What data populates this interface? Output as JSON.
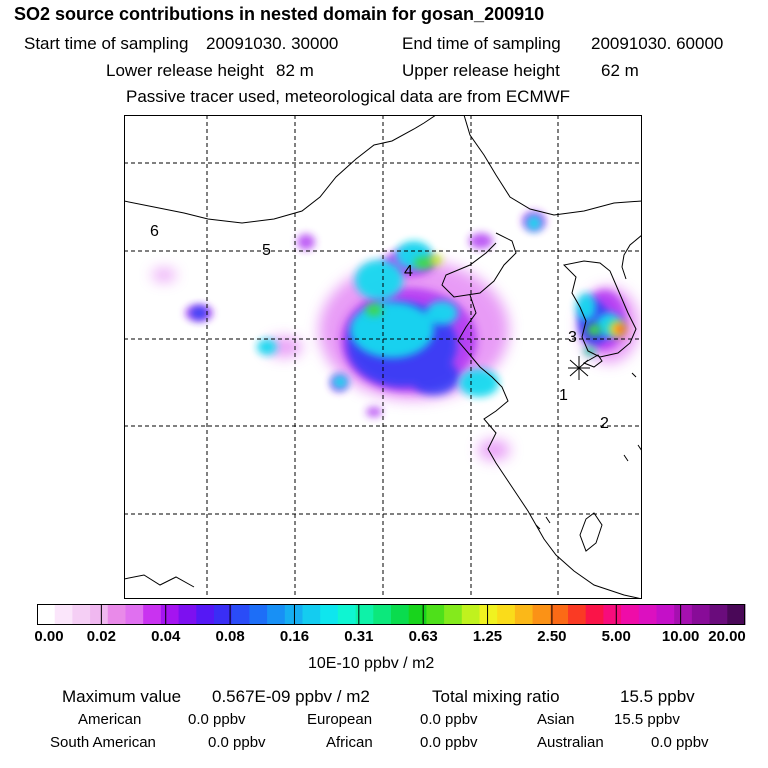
{
  "chart_data": {
    "type": "heatmap",
    "title": "SO2 source contributions in nested domain for gosan_200910",
    "header": {
      "start_label": "Start time of sampling",
      "start_value": "20091030. 30000",
      "end_label": "End time of sampling",
      "end_value": "20091030. 60000",
      "lower_label": "Lower release height",
      "lower_value": "82 m",
      "upper_label": "Upper release height",
      "upper_value": "62 m",
      "note": "Passive tracer used, meteorological data are from ECMWF"
    },
    "region_labels": [
      "1",
      "2",
      "3",
      "4",
      "5",
      "6"
    ],
    "colorbar": {
      "ticks": [
        "0.00",
        "0.02",
        "0.04",
        "0.08",
        "0.16",
        "0.31",
        "0.63",
        "1.25",
        "2.50",
        "5.00",
        "10.00",
        "20.00"
      ],
      "unit": "10E-10 ppbv / m2",
      "colors": [
        "#ffffff",
        "#fbe6fb",
        "#f5cff5",
        "#f0b8f0",
        "#e98ae9",
        "#e070f0",
        "#c933f0",
        "#a514f0",
        "#7d10f0",
        "#5518f5",
        "#3a2ef5",
        "#2a4cf7",
        "#1d6ef7",
        "#1890f5",
        "#16aef2",
        "#14ccf0",
        "#0ee6ee",
        "#0ff5d2",
        "#0ef2a8",
        "#0ce87c",
        "#0adc4e",
        "#18d41c",
        "#4ee01a",
        "#84ea1c",
        "#c0f21e",
        "#f0f220",
        "#fadc1a",
        "#fbb818",
        "#fb9216",
        "#fb6a16",
        "#fa3a24",
        "#fa1448",
        "#f70c7c",
        "#ef0ca8",
        "#dc10c0",
        "#c410c8",
        "#a510b0",
        "#880c98",
        "#6a0c7c",
        "#4a0858"
      ]
    },
    "summary": {
      "max_label": "Maximum value",
      "max_value": "0.567E-09 ppbv / m2",
      "total_label": "Total mixing ratio",
      "total_value": "15.5 ppbv",
      "american_label": "American",
      "american_value": "0.0 ppbv",
      "european_label": "European",
      "european_value": "0.0 ppbv",
      "asian_label": "Asian",
      "asian_value": "15.5 ppbv",
      "south_american_label": "South American",
      "south_american_value": "0.0 ppbv",
      "african_label": "African",
      "african_value": "0.0 ppbv",
      "australian_label": "Australian",
      "australian_value": "0.0 ppbv"
    }
  }
}
